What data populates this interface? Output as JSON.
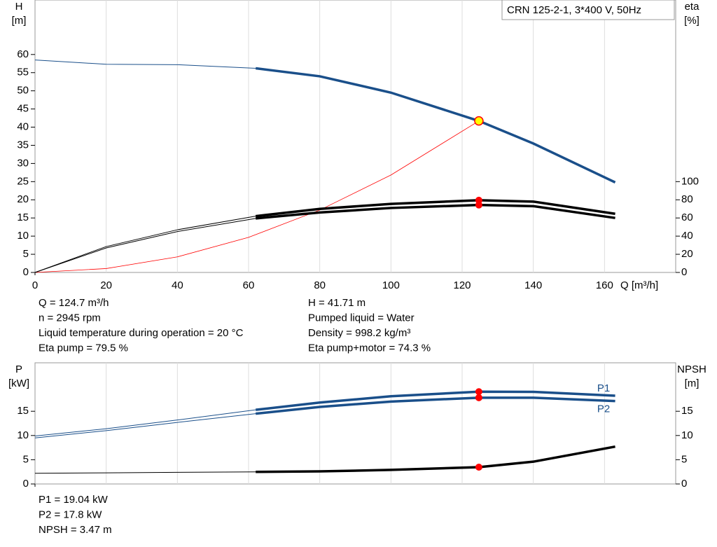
{
  "chart_data": [
    {
      "type": "line",
      "box_label": "CRN 125-2-1, 3*400 V, 50Hz",
      "y_label": [
        "H",
        "[m]"
      ],
      "y2_label": [
        "eta",
        "[%]"
      ],
      "x_label": "Q [m³/h]",
      "xlim": [
        0,
        180
      ],
      "xticks": [
        0,
        20,
        40,
        60,
        80,
        100,
        120,
        140,
        160
      ],
      "ylim": [
        0,
        75
      ],
      "yticks": [
        0,
        5,
        10,
        15,
        20,
        25,
        30,
        35,
        40,
        45,
        50,
        55,
        60
      ],
      "y2lim": [
        0,
        300
      ],
      "y2ticks": [
        0,
        20,
        40,
        60,
        80,
        100
      ],
      "grid": true,
      "operating_range": [
        62,
        163
      ],
      "duty_x": 124.7,
      "x": [
        0,
        20,
        40,
        62,
        80,
        100,
        124.7,
        140,
        163
      ],
      "series": [
        {
          "color": "#1a4f8a",
          "values": [
            58.5,
            57.3,
            57.2,
            56.2,
            54,
            49.5,
            41.71,
            35.5,
            24.8
          ]
        },
        {
          "color": "#000000",
          "axis": "y2",
          "values": [
            0,
            28.5,
            47,
            62,
            70,
            75.5,
            79.5,
            78,
            64.6
          ]
        },
        {
          "color": "#000000",
          "axis": "y2",
          "values": [
            0,
            27,
            45,
            59.5,
            66,
            71,
            74.3,
            73,
            60
          ]
        }
      ],
      "system_curve": {
        "color": "#ff0000",
        "x": [
          0,
          20,
          40,
          60,
          80,
          100,
          124.7
        ],
        "values": [
          0,
          1.07,
          4.29,
          9.66,
          17.17,
          26.82,
          41.71
        ]
      },
      "info_left": [
        "Q = 124.7 m³/h",
        "n = 2945 rpm",
        "Liquid temperature during operation = 20 °C",
        "Eta pump = 79.5 %"
      ],
      "info_right": [
        "H = 41.71 m",
        "Pumped liquid = Water",
        "Density = 998.2 kg/m³",
        "Eta pump+motor = 74.3 %"
      ]
    },
    {
      "type": "line",
      "y_label": [
        "P",
        "[kW]"
      ],
      "y2_label": [
        "NPSH",
        "[m]"
      ],
      "xlim": [
        0,
        180
      ],
      "xticks": [
        0,
        20,
        40,
        60,
        80,
        100,
        120,
        140,
        160
      ],
      "ylim": [
        0,
        25
      ],
      "yticks": [
        0,
        5,
        10,
        15
      ],
      "y2lim": [
        0,
        25
      ],
      "y2ticks": [
        0,
        5,
        10,
        15
      ],
      "grid": true,
      "operating_range": [
        62,
        163
      ],
      "duty_x": 124.7,
      "x": [
        0,
        20,
        40,
        62,
        80,
        100,
        124.7,
        140,
        163
      ],
      "series": [
        {
          "name": "P1",
          "color": "#1a4f8a",
          "values": [
            9.9,
            11.4,
            13.2,
            15.3,
            16.8,
            18.1,
            19.04,
            19.0,
            18.2
          ]
        },
        {
          "name": "P2",
          "color": "#1a4f8a",
          "values": [
            9.5,
            11.0,
            12.7,
            14.5,
            15.9,
            17.0,
            17.8,
            17.8,
            17.1
          ]
        },
        {
          "color": "#000000",
          "axis": "y2",
          "values": [
            2.2,
            2.3,
            2.4,
            2.5,
            2.6,
            2.9,
            3.47,
            4.6,
            7.7
          ]
        }
      ],
      "info": [
        "P1 = 19.04 kW",
        "P2 = 17.8 kW",
        "NPSH = 3.47 m"
      ]
    }
  ]
}
